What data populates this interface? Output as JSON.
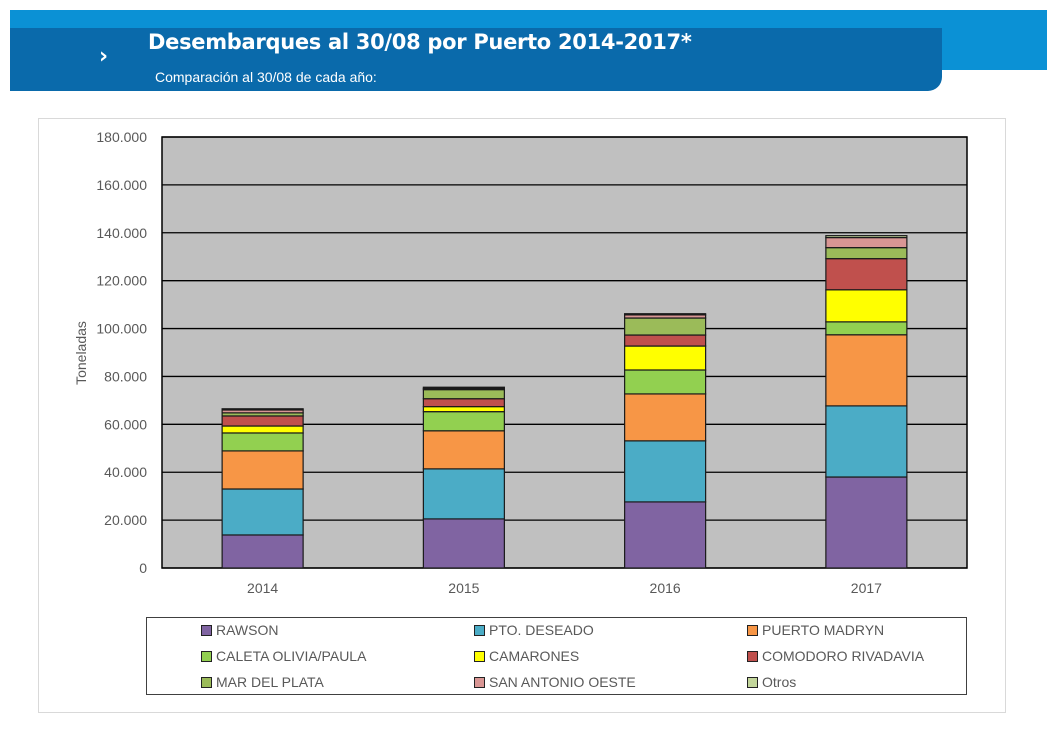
{
  "header": {
    "chevron_icon": "chevron-right-icon",
    "chevron_glyph": "›",
    "title": "Desembarques al 30/08 por Puerto 2014-2017*",
    "subtitle": "Comparación al 30/08 de cada año:"
  },
  "chart_data": {
    "type": "bar",
    "stacked": true,
    "title": "",
    "xlabel": "",
    "ylabel": "Toneladas",
    "ylim": [
      0,
      180000
    ],
    "yticks": [
      0,
      20000,
      40000,
      60000,
      80000,
      100000,
      120000,
      140000,
      160000,
      180000
    ],
    "ytick_labels": [
      "0",
      "20.000",
      "40.000",
      "60.000",
      "80.000",
      "100.000",
      "120.000",
      "140.000",
      "160.000",
      "180.000"
    ],
    "grid": true,
    "legend_position": "bottom",
    "categories": [
      "2014",
      "2015",
      "2016",
      "2017"
    ],
    "series": [
      {
        "name": "RAWSON",
        "color": "#8064a2",
        "values": [
          13800,
          20500,
          27600,
          38000
        ]
      },
      {
        "name": "PTO. DESEADO",
        "color": "#4bacc6",
        "values": [
          19200,
          20900,
          25500,
          29700
        ]
      },
      {
        "name": "PUERTO MADRYN",
        "color": "#f79646",
        "values": [
          15900,
          15900,
          19600,
          29700
        ]
      },
      {
        "name": "CALETA OLIVIA/PAULA",
        "color": "#92d050",
        "values": [
          7500,
          8000,
          10000,
          5400
        ]
      },
      {
        "name": "CAMARONES",
        "color": "#ffff00",
        "values": [
          2900,
          2100,
          10000,
          13400
        ]
      },
      {
        "name": "COMODORO RIVADAVIA",
        "color": "#c0504d",
        "values": [
          4200,
          3300,
          4600,
          13000
        ]
      },
      {
        "name": "MAR DEL PLATA",
        "color": "#9bbb59",
        "values": [
          1300,
          3800,
          7100,
          4600
        ]
      },
      {
        "name": "SAN ANTONIO OESTE",
        "color": "#d99694",
        "values": [
          1200,
          500,
          1300,
          4200
        ]
      },
      {
        "name": "Otros",
        "color": "#c3d69b",
        "values": [
          500,
          500,
          500,
          800
        ]
      }
    ]
  }
}
